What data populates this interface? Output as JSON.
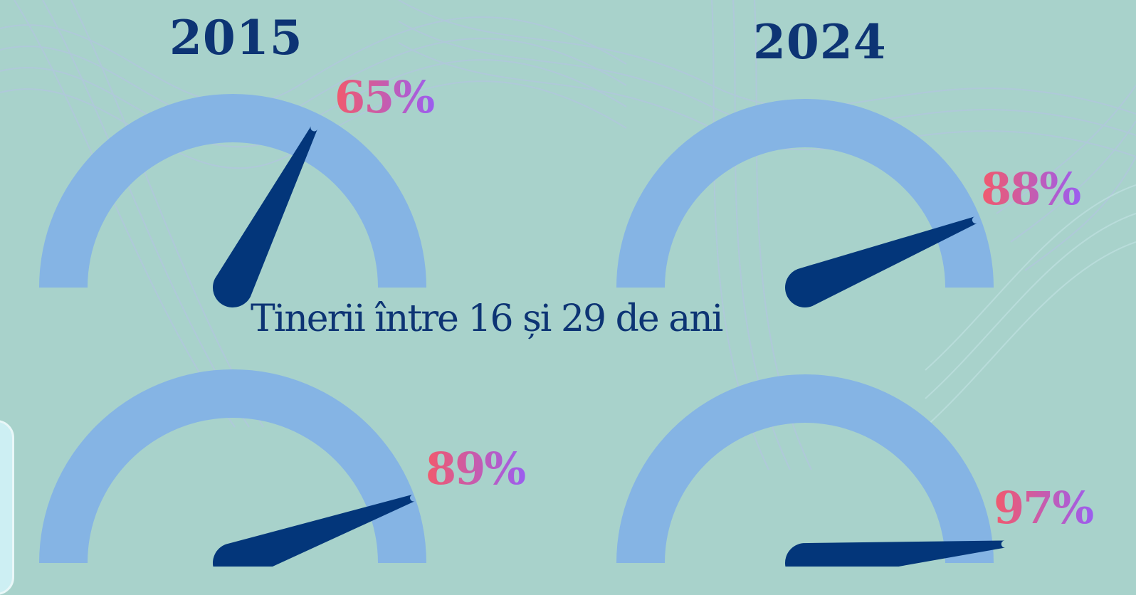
{
  "titles": {
    "year_2015": "2015",
    "year_2024": "2024"
  },
  "subtitle": "Tinerii între 16 și 29 de ani",
  "colors": {
    "background": "#a8d2cb",
    "arc": "#85b4e4",
    "needle": "#03367a",
    "heading": "#0d3474",
    "label_start": "#f25a6c",
    "label_end": "#9b5df0"
  },
  "chart_data": [
    {
      "type": "gauge",
      "title": "2015",
      "value": 65,
      "label": "65%",
      "min": 0,
      "max": 100
    },
    {
      "type": "gauge",
      "title": "2024",
      "value": 88,
      "label": "88%",
      "min": 0,
      "max": 100
    },
    {
      "type": "gauge",
      "title": "",
      "value": 89,
      "label": "89%",
      "min": 0,
      "max": 100
    },
    {
      "type": "gauge",
      "title": "",
      "value": 97,
      "label": "97%",
      "min": 0,
      "max": 100
    }
  ]
}
